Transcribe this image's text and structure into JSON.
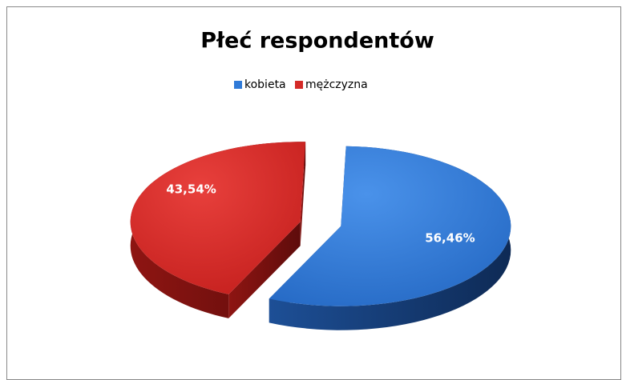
{
  "chart_data": {
    "type": "pie",
    "title": "Płeć respondentów",
    "categories": [
      "kobieta",
      "mężczyzna"
    ],
    "values": [
      56.46,
      43.54
    ],
    "value_labels": [
      "56,46%",
      "43,54%"
    ],
    "colors": [
      "#2f7ad8",
      "#d42a27"
    ],
    "legend": "top"
  }
}
